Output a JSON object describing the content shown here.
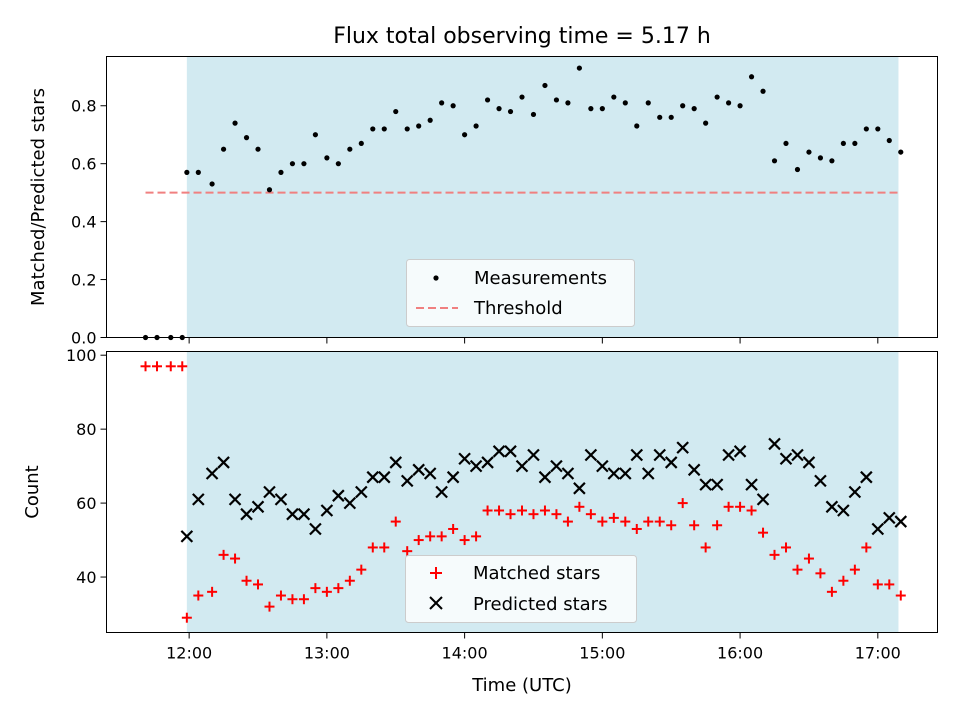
{
  "chart_data": [
    {
      "type": "scatter",
      "title": "Flux total observing time = 5.17 h",
      "xlabel": "",
      "ylabel": "Matched/Predicted stars",
      "xlim": [
        "11:24",
        "17:26"
      ],
      "ylim": [
        0,
        0.97
      ],
      "y_ticks": [
        "0.0",
        "0.2",
        "0.4",
        "0.6",
        "0.8"
      ],
      "x_ticks": [
        "12:00",
        "13:00",
        "14:00",
        "15:00",
        "16:00",
        "17:00"
      ],
      "shaded_interval": [
        "11:59",
        "17:09"
      ],
      "shade_color": "#add8e6",
      "legend_position": "lower center",
      "series": [
        {
          "name": "Measurements",
          "marker": "dot",
          "color": "#000000",
          "points": [
            [
              "11:41",
              0
            ],
            [
              "11:46",
              0
            ],
            [
              "11:52",
              0
            ],
            [
              "11:57",
              0
            ],
            [
              "11:59",
              0.57
            ],
            [
              "12:04",
              0.57
            ],
            [
              "12:10",
              0.53
            ],
            [
              "12:15",
              0.65
            ],
            [
              "12:20",
              0.74
            ],
            [
              "12:25",
              0.69
            ],
            [
              "12:30",
              0.65
            ],
            [
              "12:35",
              0.51
            ],
            [
              "12:40",
              0.57
            ],
            [
              "12:45",
              0.6
            ],
            [
              "12:50",
              0.6
            ],
            [
              "12:55",
              0.7
            ],
            [
              "13:00",
              0.62
            ],
            [
              "13:05",
              0.6
            ],
            [
              "13:10",
              0.65
            ],
            [
              "13:15",
              0.67
            ],
            [
              "13:20",
              0.72
            ],
            [
              "13:25",
              0.72
            ],
            [
              "13:30",
              0.78
            ],
            [
              "13:35",
              0.72
            ],
            [
              "13:40",
              0.73
            ],
            [
              "13:45",
              0.75
            ],
            [
              "13:50",
              0.81
            ],
            [
              "13:55",
              0.8
            ],
            [
              "14:00",
              0.7
            ],
            [
              "14:05",
              0.73
            ],
            [
              "14:10",
              0.82
            ],
            [
              "14:15",
              0.79
            ],
            [
              "14:20",
              0.78
            ],
            [
              "14:25",
              0.83
            ],
            [
              "14:30",
              0.77
            ],
            [
              "14:35",
              0.87
            ],
            [
              "14:40",
              0.82
            ],
            [
              "14:45",
              0.81
            ],
            [
              "14:50",
              0.93
            ],
            [
              "14:55",
              0.79
            ],
            [
              "15:00",
              0.79
            ],
            [
              "15:05",
              0.83
            ],
            [
              "15:10",
              0.81
            ],
            [
              "15:15",
              0.73
            ],
            [
              "15:20",
              0.81
            ],
            [
              "15:25",
              0.76
            ],
            [
              "15:30",
              0.76
            ],
            [
              "15:35",
              0.8
            ],
            [
              "15:40",
              0.79
            ],
            [
              "15:45",
              0.74
            ],
            [
              "15:50",
              0.83
            ],
            [
              "15:55",
              0.81
            ],
            [
              "16:00",
              0.8
            ],
            [
              "16:05",
              0.9
            ],
            [
              "16:10",
              0.85
            ],
            [
              "16:15",
              0.61
            ],
            [
              "16:20",
              0.67
            ],
            [
              "16:25",
              0.58
            ],
            [
              "16:30",
              0.64
            ],
            [
              "16:35",
              0.62
            ],
            [
              "16:40",
              0.61
            ],
            [
              "16:45",
              0.67
            ],
            [
              "16:50",
              0.67
            ],
            [
              "16:55",
              0.72
            ],
            [
              "17:00",
              0.72
            ],
            [
              "17:05",
              0.68
            ],
            [
              "17:10",
              0.64
            ]
          ]
        },
        {
          "name": "Threshold",
          "style": "dashed",
          "color": "#f08080",
          "x": [
            "11:41",
            "17:10"
          ],
          "y": [
            0.5,
            0.5
          ]
        }
      ]
    },
    {
      "type": "scatter",
      "title": "",
      "xlabel": "Time (UTC)",
      "ylabel": "Count",
      "xlim": [
        "11:24",
        "17:26"
      ],
      "ylim": [
        25,
        101
      ],
      "y_ticks": [
        "40",
        "60",
        "80",
        "100"
      ],
      "x_ticks": [
        "12:00",
        "13:00",
        "14:00",
        "15:00",
        "16:00",
        "17:00"
      ],
      "shaded_interval": [
        "11:59",
        "17:09"
      ],
      "shade_color": "#add8e6",
      "legend_position": "lower center",
      "series": [
        {
          "name": "Matched stars",
          "marker": "plus",
          "color": "#ff0000",
          "points": [
            [
              "11:41",
              97
            ],
            [
              "11:46",
              97
            ],
            [
              "11:52",
              97
            ],
            [
              "11:57",
              97
            ],
            [
              "11:59",
              29
            ],
            [
              "12:04",
              35
            ],
            [
              "12:10",
              36
            ],
            [
              "12:15",
              46
            ],
            [
              "12:20",
              45
            ],
            [
              "12:25",
              39
            ],
            [
              "12:30",
              38
            ],
            [
              "12:35",
              32
            ],
            [
              "12:40",
              35
            ],
            [
              "12:45",
              34
            ],
            [
              "12:50",
              34
            ],
            [
              "12:55",
              37
            ],
            [
              "13:00",
              36
            ],
            [
              "13:05",
              37
            ],
            [
              "13:10",
              39
            ],
            [
              "13:15",
              42
            ],
            [
              "13:20",
              48
            ],
            [
              "13:25",
              48
            ],
            [
              "13:30",
              55
            ],
            [
              "13:35",
              47
            ],
            [
              "13:40",
              50
            ],
            [
              "13:45",
              51
            ],
            [
              "13:50",
              51
            ],
            [
              "13:55",
              53
            ],
            [
              "14:00",
              50
            ],
            [
              "14:05",
              51
            ],
            [
              "14:10",
              58
            ],
            [
              "14:15",
              58
            ],
            [
              "14:20",
              57
            ],
            [
              "14:25",
              58
            ],
            [
              "14:30",
              57
            ],
            [
              "14:35",
              58
            ],
            [
              "14:40",
              57
            ],
            [
              "14:45",
              55
            ],
            [
              "14:50",
              59
            ],
            [
              "14:55",
              57
            ],
            [
              "15:00",
              55
            ],
            [
              "15:05",
              56
            ],
            [
              "15:10",
              55
            ],
            [
              "15:15",
              53
            ],
            [
              "15:20",
              55
            ],
            [
              "15:25",
              55
            ],
            [
              "15:30",
              54
            ],
            [
              "15:35",
              60
            ],
            [
              "15:40",
              54
            ],
            [
              "15:45",
              48
            ],
            [
              "15:50",
              54
            ],
            [
              "15:55",
              59
            ],
            [
              "16:00",
              59
            ],
            [
              "16:05",
              58
            ],
            [
              "16:10",
              52
            ],
            [
              "16:15",
              46
            ],
            [
              "16:20",
              48
            ],
            [
              "16:25",
              42
            ],
            [
              "16:30",
              45
            ],
            [
              "16:35",
              41
            ],
            [
              "16:40",
              36
            ],
            [
              "16:45",
              39
            ],
            [
              "16:50",
              42
            ],
            [
              "16:55",
              48
            ],
            [
              "17:00",
              38
            ],
            [
              "17:05",
              38
            ],
            [
              "17:10",
              35
            ]
          ]
        },
        {
          "name": "Predicted stars",
          "marker": "x",
          "color": "#000000",
          "points": [
            [
              "11:59",
              51
            ],
            [
              "12:04",
              61
            ],
            [
              "12:10",
              68
            ],
            [
              "12:15",
              71
            ],
            [
              "12:20",
              61
            ],
            [
              "12:25",
              57
            ],
            [
              "12:30",
              59
            ],
            [
              "12:35",
              63
            ],
            [
              "12:40",
              61
            ],
            [
              "12:45",
              57
            ],
            [
              "12:50",
              57
            ],
            [
              "12:55",
              53
            ],
            [
              "13:00",
              58
            ],
            [
              "13:05",
              62
            ],
            [
              "13:10",
              60
            ],
            [
              "13:15",
              63
            ],
            [
              "13:20",
              67
            ],
            [
              "13:25",
              67
            ],
            [
              "13:30",
              71
            ],
            [
              "13:35",
              66
            ],
            [
              "13:40",
              69
            ],
            [
              "13:45",
              68
            ],
            [
              "13:50",
              63
            ],
            [
              "13:55",
              67
            ],
            [
              "14:00",
              72
            ],
            [
              "14:05",
              70
            ],
            [
              "14:10",
              71
            ],
            [
              "14:15",
              74
            ],
            [
              "14:20",
              74
            ],
            [
              "14:25",
              70
            ],
            [
              "14:30",
              73
            ],
            [
              "14:35",
              67
            ],
            [
              "14:40",
              70
            ],
            [
              "14:45",
              68
            ],
            [
              "14:50",
              64
            ],
            [
              "14:55",
              73
            ],
            [
              "15:00",
              70
            ],
            [
              "15:05",
              68
            ],
            [
              "15:10",
              68
            ],
            [
              "15:15",
              73
            ],
            [
              "15:20",
              68
            ],
            [
              "15:25",
              73
            ],
            [
              "15:30",
              71
            ],
            [
              "15:35",
              75
            ],
            [
              "15:40",
              69
            ],
            [
              "15:45",
              65
            ],
            [
              "15:50",
              65
            ],
            [
              "15:55",
              73
            ],
            [
              "16:00",
              74
            ],
            [
              "16:05",
              65
            ],
            [
              "16:10",
              61
            ],
            [
              "16:15",
              76
            ],
            [
              "16:20",
              72
            ],
            [
              "16:25",
              73
            ],
            [
              "16:30",
              71
            ],
            [
              "16:35",
              66
            ],
            [
              "16:40",
              59
            ],
            [
              "16:45",
              58
            ],
            [
              "16:50",
              63
            ],
            [
              "16:55",
              67
            ],
            [
              "17:00",
              53
            ],
            [
              "17:05",
              56
            ],
            [
              "17:10",
              55
            ]
          ]
        }
      ]
    }
  ]
}
